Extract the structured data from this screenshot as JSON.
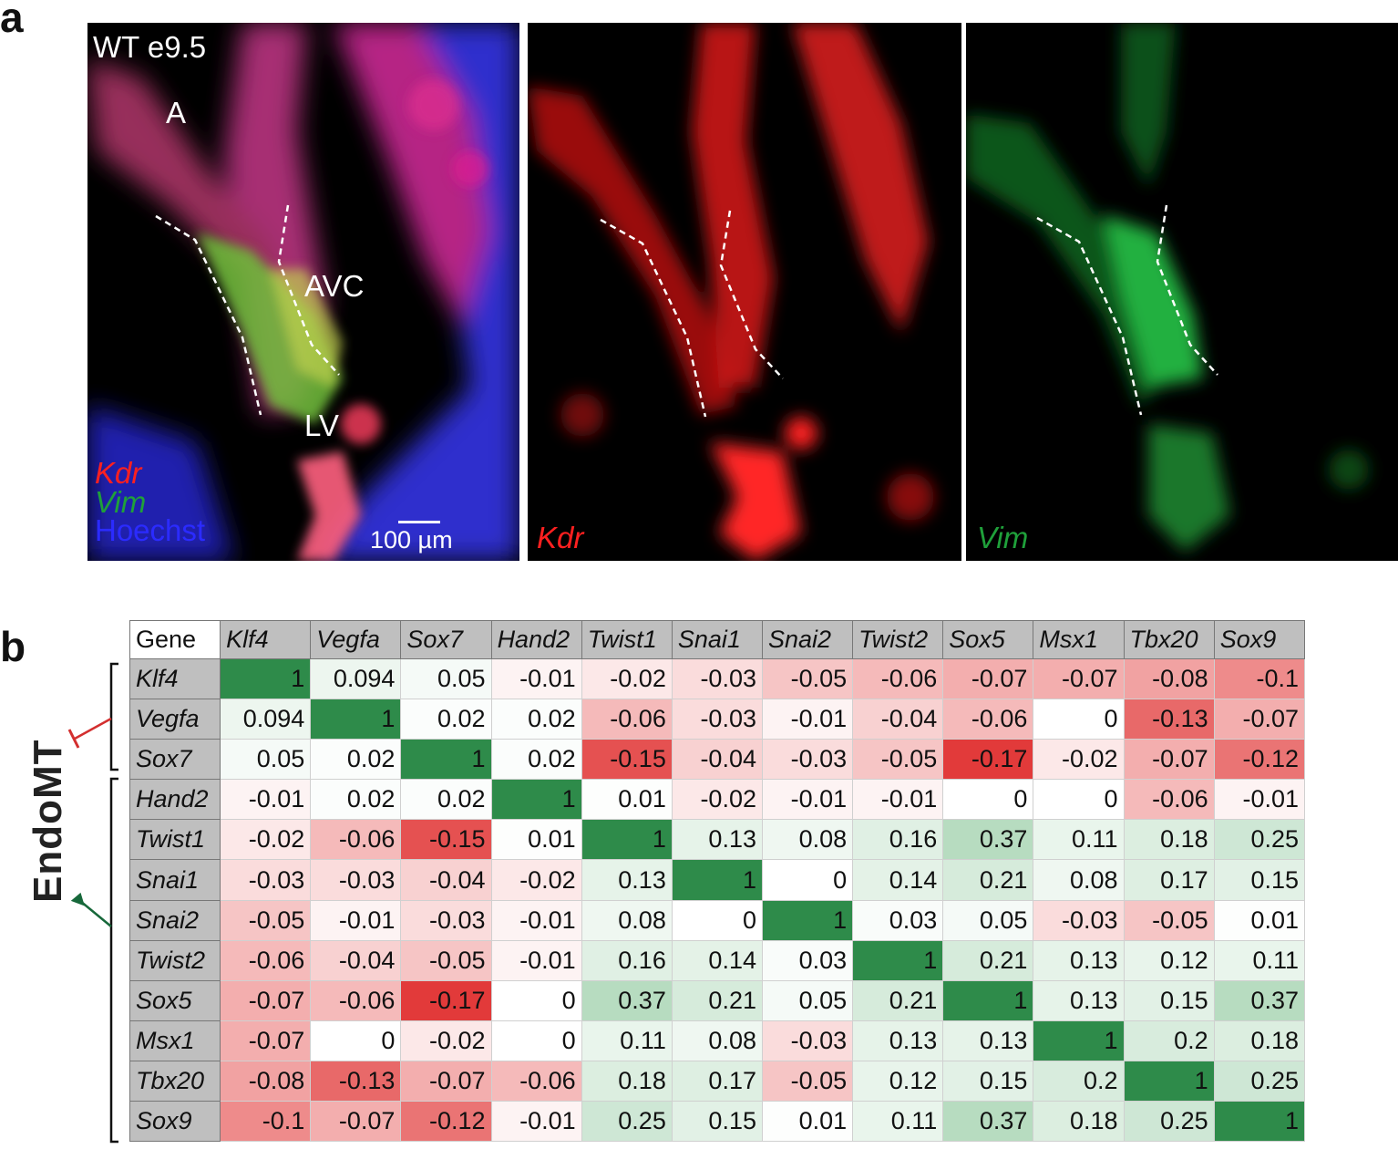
{
  "panel_a": {
    "letter": "a",
    "merged": {
      "stage": "WT e9.5",
      "label_a": "A",
      "label_avc": "AVC",
      "label_lv": "LV",
      "legend_kdr": "Kdr",
      "legend_vim": "Vim",
      "legend_hoechst": "Hoechst",
      "scalebar": "100 µm"
    },
    "kdr_panel_label": "Kdr",
    "vim_panel_label": "Vim",
    "colors": {
      "kdr": "#ff2020",
      "vim": "#1fa03a",
      "hoechst": "#2b2bff"
    }
  },
  "panel_b": {
    "letter": "b",
    "endomt_label": "EndoMT",
    "corner": "Gene",
    "genes": [
      "Klf4",
      "Vegfa",
      "Sox7",
      "Hand2",
      "Twist1",
      "Snai1",
      "Snai2",
      "Twist2",
      "Sox5",
      "Msx1",
      "Tbx20",
      "Sox9"
    ],
    "matrix": [
      [
        "1",
        "0.094",
        "0.05",
        "-0.01",
        "-0.02",
        "-0.03",
        "-0.05",
        "-0.06",
        "-0.07",
        "-0.07",
        "-0.08",
        "-0.1"
      ],
      [
        "0.094",
        "1",
        "0.02",
        "0.02",
        "-0.06",
        "-0.03",
        "-0.01",
        "-0.04",
        "-0.06",
        "0",
        "-0.13",
        "-0.07"
      ],
      [
        "0.05",
        "0.02",
        "1",
        "0.02",
        "-0.15",
        "-0.04",
        "-0.03",
        "-0.05",
        "-0.17",
        "-0.02",
        "-0.07",
        "-0.12"
      ],
      [
        "-0.01",
        "0.02",
        "0.02",
        "1",
        "0.01",
        "-0.02",
        "-0.01",
        "-0.01",
        "0",
        "0",
        "-0.06",
        "-0.01"
      ],
      [
        "-0.02",
        "-0.06",
        "-0.15",
        "0.01",
        "1",
        "0.13",
        "0.08",
        "0.16",
        "0.37",
        "0.11",
        "0.18",
        "0.25"
      ],
      [
        "-0.03",
        "-0.03",
        "-0.04",
        "-0.02",
        "0.13",
        "1",
        "0",
        "0.14",
        "0.21",
        "0.08",
        "0.17",
        "0.15"
      ],
      [
        "-0.05",
        "-0.01",
        "-0.03",
        "-0.01",
        "0.08",
        "0",
        "1",
        "0.03",
        "0.05",
        "-0.03",
        "-0.05",
        "0.01"
      ],
      [
        "-0.06",
        "-0.04",
        "-0.05",
        "-0.01",
        "0.16",
        "0.14",
        "0.03",
        "1",
        "0.21",
        "0.13",
        "0.12",
        "0.11"
      ],
      [
        "-0.07",
        "-0.06",
        "-0.17",
        "0",
        "0.37",
        "0.21",
        "0.05",
        "0.21",
        "1",
        "0.13",
        "0.15",
        "0.37"
      ],
      [
        "-0.07",
        "0",
        "-0.02",
        "0",
        "0.11",
        "0.08",
        "-0.03",
        "0.13",
        "0.13",
        "1",
        "0.2",
        "0.18"
      ],
      [
        "-0.08",
        "-0.13",
        "-0.07",
        "-0.06",
        "0.18",
        "0.17",
        "-0.05",
        "0.12",
        "0.15",
        "0.2",
        "1",
        "0.25"
      ],
      [
        "-0.1",
        "-0.07",
        "-0.12",
        "-0.01",
        "0.25",
        "0.15",
        "0.01",
        "0.11",
        "0.37",
        "0.18",
        "0.25",
        "1"
      ]
    ],
    "colors": {
      "diagonal": "#2e8b4a",
      "positive": "#5fb174",
      "negative": "#e03030"
    }
  }
}
